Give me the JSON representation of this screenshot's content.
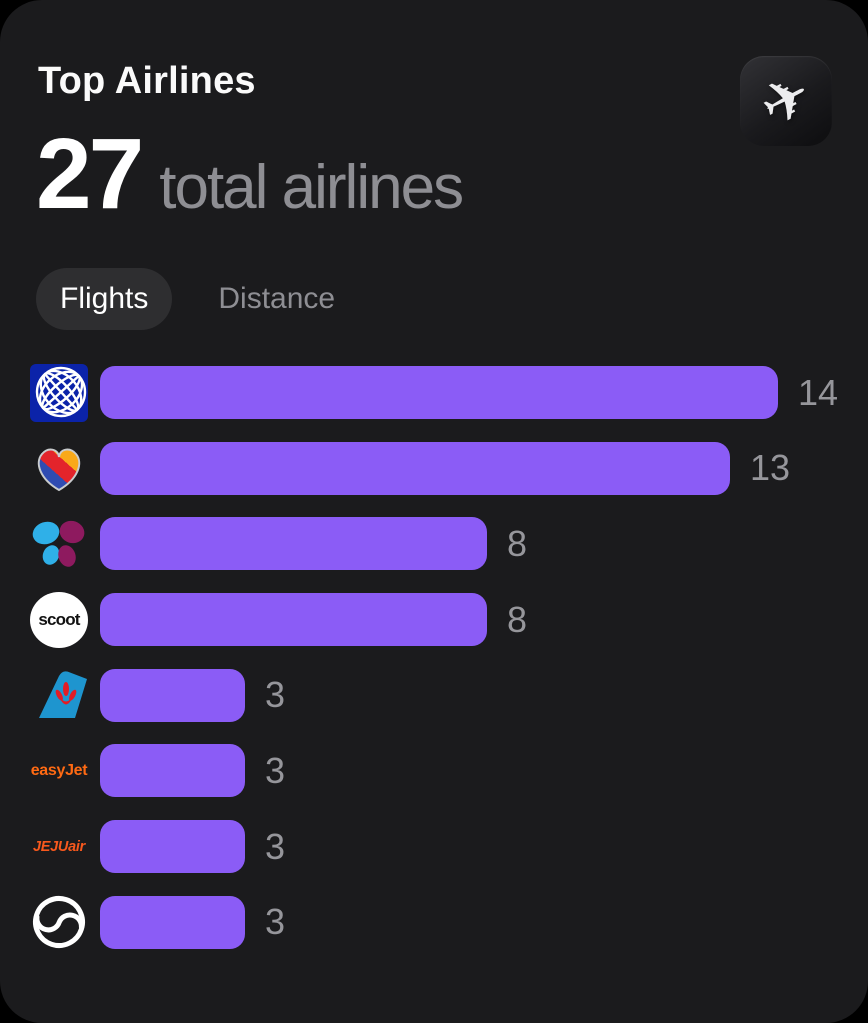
{
  "card": {
    "title": "Top Airlines",
    "header_icon": "airplane-app-icon",
    "stat": {
      "value": "27",
      "label": "total airlines"
    },
    "tabs": [
      {
        "id": "flights",
        "label": "Flights",
        "selected": true
      },
      {
        "id": "distance",
        "label": "Distance",
        "selected": false
      }
    ]
  },
  "colors": {
    "page_bg": "#000000",
    "card_bg": "#1B1B1D",
    "bar": "#8B5CF6",
    "muted_text": "#8E8E93",
    "pill_bg": "#2E2E30",
    "title_text": "#FAFAFA"
  },
  "chart_data": {
    "type": "bar",
    "orientation": "horizontal",
    "title": "Top Airlines",
    "legend": "none",
    "grid": false,
    "xlim": [
      0,
      14
    ],
    "categories": [
      "United Airlines (globe logo)",
      "Southwest Airlines (heart logo)",
      "Butterfly-logo airline",
      "Scoot",
      "China Southern Airlines (tail logo)",
      "easyJet",
      "Jeju Air",
      "Korean Air (taegeuk swirl logo)"
    ],
    "values": [
      14,
      13,
      8,
      8,
      3,
      3,
      3,
      3
    ],
    "value_labels": [
      "14",
      "13",
      "8",
      "8",
      "3",
      "3",
      "3",
      "3"
    ],
    "logos": [
      {
        "id": "united-globe-logo",
        "type": "united"
      },
      {
        "id": "southwest-heart-logo",
        "type": "southwest"
      },
      {
        "id": "butterfly-logo",
        "type": "butterfly"
      },
      {
        "id": "scoot-logo",
        "type": "scoot",
        "text": "scoot"
      },
      {
        "id": "china-southern-tail-logo",
        "type": "china-southern"
      },
      {
        "id": "easyjet-logo",
        "type": "easyjet",
        "text": "easyJet"
      },
      {
        "id": "jejuair-logo",
        "type": "jejuair",
        "text": "JEJUair"
      },
      {
        "id": "korean-air-taegeuk-logo",
        "type": "taegeuk"
      }
    ]
  }
}
